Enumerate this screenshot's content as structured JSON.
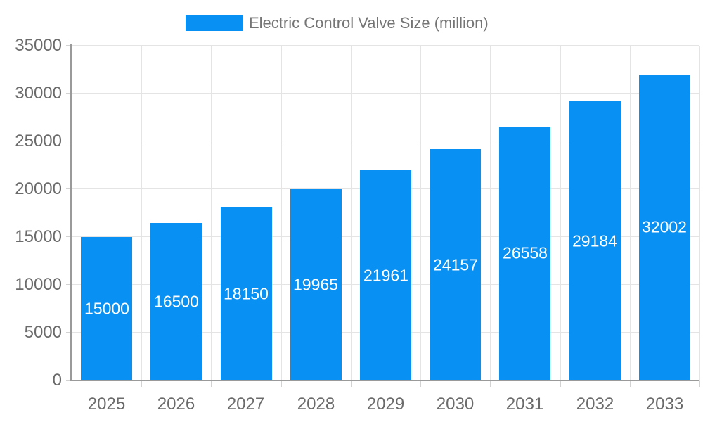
{
  "chart_data": {
    "type": "bar",
    "title": "Electric Control Valve Size (million)",
    "categories": [
      "2025",
      "2026",
      "2027",
      "2028",
      "2029",
      "2030",
      "2031",
      "2032",
      "2033"
    ],
    "series": [
      {
        "name": "Electric Control Valve Size (million)",
        "values": [
          15000,
          16500,
          18150,
          19965,
          21961,
          24157,
          26558,
          29184,
          32002
        ]
      }
    ],
    "value_labels": [
      "15000",
      "16500",
      "18150",
      "19965",
      "21961",
      "24157",
      "26558",
      "29184",
      "32002"
    ],
    "xlabel": "",
    "ylabel": "",
    "ylim": [
      0,
      35000
    ],
    "yticks": [
      0,
      5000,
      10000,
      15000,
      20000,
      25000,
      30000,
      35000
    ],
    "ytick_labels": [
      "0",
      "5000",
      "10000",
      "15000",
      "20000",
      "25000",
      "30000",
      "35000"
    ],
    "grid": true,
    "legend_position": "top",
    "colors": {
      "bar": "#0990f3",
      "value_label": "#ffffff",
      "axis_line": "#9a9a9a",
      "grid_line": "#e4e4e4",
      "tick_mark": "#d2d2d2",
      "tick_label": "#6b6b6b",
      "legend_text": "#757575",
      "background": "#ffffff"
    }
  }
}
